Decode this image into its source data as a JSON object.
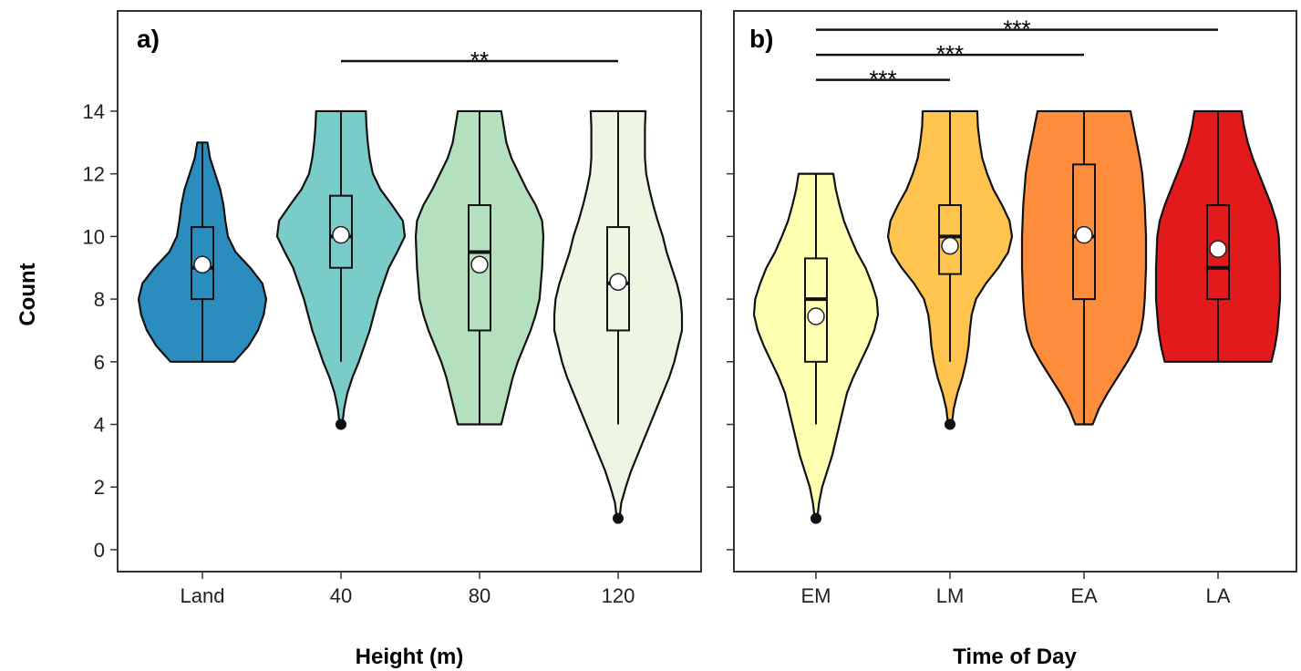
{
  "figure": {
    "y_axis_title": "Count"
  },
  "chart_data": [
    {
      "type": "violin",
      "panel_label": "a)",
      "xlabel": "Height (m)",
      "ylabel": "Count",
      "ylim": [
        -0.7,
        17.2
      ],
      "yticks": [
        0,
        2,
        4,
        6,
        8,
        10,
        12,
        14
      ],
      "categories": [
        "Land",
        "40",
        "80",
        "120"
      ],
      "colors": [
        "#2b8cbe",
        "#7accc8",
        "#b5e0bd",
        "#edf5e3"
      ],
      "groups": [
        {
          "category": "Land",
          "min": 6,
          "max": 13,
          "q1": 8,
          "median": 9,
          "q3": 10.3,
          "mean": 9.1,
          "whisker_low": 6,
          "whisker_high": 13,
          "outliers": [],
          "density": [
            [
              6,
              0.5
            ],
            [
              6.5,
              0.72
            ],
            [
              7,
              0.87
            ],
            [
              7.5,
              0.96
            ],
            [
              8,
              1.0
            ],
            [
              8.5,
              0.94
            ],
            [
              9,
              0.75
            ],
            [
              9.5,
              0.52
            ],
            [
              10,
              0.4
            ],
            [
              10.5,
              0.36
            ],
            [
              11,
              0.33
            ],
            [
              11.5,
              0.28
            ],
            [
              12,
              0.2
            ],
            [
              12.5,
              0.12
            ],
            [
              13,
              0.08
            ]
          ]
        },
        {
          "category": "40",
          "min": 4,
          "max": 14,
          "q1": 9,
          "median": 10,
          "q3": 11.3,
          "mean": 10.05,
          "whisker_low": 6,
          "whisker_high": 14,
          "outliers": [
            4
          ],
          "density": [
            [
              4,
              0.02
            ],
            [
              4.5,
              0.05
            ],
            [
              5,
              0.1
            ],
            [
              5.5,
              0.18
            ],
            [
              6,
              0.28
            ],
            [
              7,
              0.45
            ],
            [
              8,
              0.58
            ],
            [
              9,
              0.75
            ],
            [
              9.5,
              0.88
            ],
            [
              10,
              1.0
            ],
            [
              10.5,
              0.97
            ],
            [
              11,
              0.8
            ],
            [
              11.5,
              0.62
            ],
            [
              12,
              0.5
            ],
            [
              12.5,
              0.45
            ],
            [
              13,
              0.42
            ],
            [
              13.5,
              0.4
            ],
            [
              14,
              0.39
            ]
          ]
        },
        {
          "category": "80",
          "min": 4,
          "max": 14,
          "q1": 7,
          "median": 9.5,
          "q3": 11,
          "mean": 9.1,
          "whisker_low": 4,
          "whisker_high": 14,
          "outliers": [],
          "density": [
            [
              4,
              0.34
            ],
            [
              4.5,
              0.4
            ],
            [
              5,
              0.46
            ],
            [
              5.5,
              0.52
            ],
            [
              6,
              0.6
            ],
            [
              6.5,
              0.7
            ],
            [
              7,
              0.8
            ],
            [
              7.5,
              0.88
            ],
            [
              8,
              0.94
            ],
            [
              9,
              0.98
            ],
            [
              10,
              1.0
            ],
            [
              10.5,
              0.98
            ],
            [
              11,
              0.88
            ],
            [
              11.5,
              0.74
            ],
            [
              12,
              0.62
            ],
            [
              12.5,
              0.5
            ],
            [
              13,
              0.42
            ],
            [
              13.5,
              0.38
            ],
            [
              14,
              0.34
            ]
          ]
        },
        {
          "category": "120",
          "min": 1,
          "max": 14,
          "q1": 7,
          "median": 8.5,
          "q3": 10.3,
          "mean": 8.55,
          "whisker_low": 4,
          "whisker_high": 14,
          "outliers": [
            1
          ],
          "density": [
            [
              1,
              0.02
            ],
            [
              1.5,
              0.05
            ],
            [
              2,
              0.12
            ],
            [
              2.5,
              0.2
            ],
            [
              3,
              0.3
            ],
            [
              3.5,
              0.4
            ],
            [
              4,
              0.5
            ],
            [
              4.5,
              0.6
            ],
            [
              5,
              0.7
            ],
            [
              5.5,
              0.8
            ],
            [
              6,
              0.88
            ],
            [
              6.5,
              0.94
            ],
            [
              7,
              1.0
            ],
            [
              7.5,
              1.0
            ],
            [
              8,
              0.98
            ],
            [
              8.5,
              0.92
            ],
            [
              9,
              0.84
            ],
            [
              9.5,
              0.76
            ],
            [
              10,
              0.7
            ],
            [
              10.5,
              0.62
            ],
            [
              11,
              0.55
            ],
            [
              11.5,
              0.49
            ],
            [
              12,
              0.44
            ],
            [
              12.5,
              0.42
            ],
            [
              13,
              0.42
            ],
            [
              13.5,
              0.42
            ],
            [
              14,
              0.43
            ]
          ]
        }
      ],
      "significance": [
        {
          "from": "40",
          "to": "120",
          "label": "**",
          "y": 15.6
        }
      ]
    },
    {
      "type": "violin",
      "panel_label": "b)",
      "xlabel": "Time of Day",
      "ylabel": "Count",
      "ylim": [
        -0.7,
        17.2
      ],
      "yticks": [
        0,
        2,
        4,
        6,
        8,
        10,
        12,
        14
      ],
      "categories": [
        "EM",
        "LM",
        "EA",
        "LA"
      ],
      "colors": [
        "#ffffb2",
        "#fec44f",
        "#fd8d3c",
        "#e31a1c"
      ],
      "groups": [
        {
          "category": "EM",
          "min": 1,
          "max": 12,
          "q1": 6,
          "median": 8,
          "q3": 9.3,
          "mean": 7.45,
          "whisker_low": 4,
          "whisker_high": 12,
          "outliers": [
            1
          ],
          "density": [
            [
              1,
              0.02
            ],
            [
              1.5,
              0.05
            ],
            [
              2,
              0.1
            ],
            [
              2.5,
              0.18
            ],
            [
              3,
              0.26
            ],
            [
              3.5,
              0.32
            ],
            [
              4,
              0.38
            ],
            [
              4.5,
              0.44
            ],
            [
              5,
              0.5
            ],
            [
              5.5,
              0.6
            ],
            [
              6,
              0.72
            ],
            [
              6.5,
              0.84
            ],
            [
              7,
              0.94
            ],
            [
              7.5,
              1.0
            ],
            [
              8,
              0.98
            ],
            [
              8.5,
              0.9
            ],
            [
              9,
              0.8
            ],
            [
              9.5,
              0.66
            ],
            [
              10,
              0.55
            ],
            [
              10.5,
              0.45
            ],
            [
              11,
              0.38
            ],
            [
              11.5,
              0.32
            ],
            [
              12,
              0.28
            ]
          ]
        },
        {
          "category": "LM",
          "min": 4,
          "max": 14,
          "q1": 8.8,
          "median": 10,
          "q3": 11,
          "mean": 9.7,
          "whisker_low": 6,
          "whisker_high": 14,
          "outliers": [
            4
          ],
          "density": [
            [
              4,
              0.03
            ],
            [
              4.5,
              0.06
            ],
            [
              5,
              0.12
            ],
            [
              5.5,
              0.2
            ],
            [
              6,
              0.26
            ],
            [
              6.5,
              0.3
            ],
            [
              7,
              0.32
            ],
            [
              7.5,
              0.35
            ],
            [
              8,
              0.42
            ],
            [
              8.5,
              0.58
            ],
            [
              9,
              0.78
            ],
            [
              9.5,
              0.94
            ],
            [
              10,
              1.0
            ],
            [
              10.5,
              0.96
            ],
            [
              11,
              0.84
            ],
            [
              11.5,
              0.7
            ],
            [
              12,
              0.6
            ],
            [
              12.5,
              0.52
            ],
            [
              13,
              0.48
            ],
            [
              13.5,
              0.45
            ],
            [
              14,
              0.44
            ]
          ]
        },
        {
          "category": "EA",
          "min": 4,
          "max": 14,
          "q1": 8,
          "median": 10,
          "q3": 12.3,
          "mean": 10.05,
          "whisker_low": 4,
          "whisker_high": 14,
          "outliers": [],
          "density": [
            [
              4,
              0.14
            ],
            [
              4.5,
              0.24
            ],
            [
              5,
              0.38
            ],
            [
              5.5,
              0.54
            ],
            [
              6,
              0.7
            ],
            [
              6.5,
              0.84
            ],
            [
              7,
              0.92
            ],
            [
              7.5,
              0.96
            ],
            [
              8,
              0.98
            ],
            [
              9,
              1.0
            ],
            [
              10,
              1.0
            ],
            [
              11,
              0.98
            ],
            [
              11.5,
              0.96
            ],
            [
              12,
              0.94
            ],
            [
              12.5,
              0.9
            ],
            [
              13,
              0.85
            ],
            [
              13.5,
              0.8
            ],
            [
              14,
              0.75
            ]
          ]
        },
        {
          "category": "LA",
          "min": 6,
          "max": 14,
          "q1": 8,
          "median": 9,
          "q3": 11,
          "mean": 9.6,
          "whisker_low": 6,
          "whisker_high": 14,
          "outliers": [],
          "density": [
            [
              6,
              0.86
            ],
            [
              6.5,
              0.92
            ],
            [
              7,
              0.96
            ],
            [
              7.5,
              0.98
            ],
            [
              8,
              1.0
            ],
            [
              9,
              1.0
            ],
            [
              10,
              0.98
            ],
            [
              10.5,
              0.94
            ],
            [
              11,
              0.86
            ],
            [
              11.5,
              0.76
            ],
            [
              12,
              0.66
            ],
            [
              12.5,
              0.56
            ],
            [
              13,
              0.48
            ],
            [
              13.5,
              0.42
            ],
            [
              14,
              0.38
            ]
          ]
        }
      ],
      "significance": [
        {
          "from": "EM",
          "to": "LM",
          "label": "***",
          "y": 15.0
        },
        {
          "from": "EM",
          "to": "EA",
          "label": "***",
          "y": 15.8
        },
        {
          "from": "EM",
          "to": "LA",
          "label": "***",
          "y": 16.6
        }
      ]
    }
  ]
}
